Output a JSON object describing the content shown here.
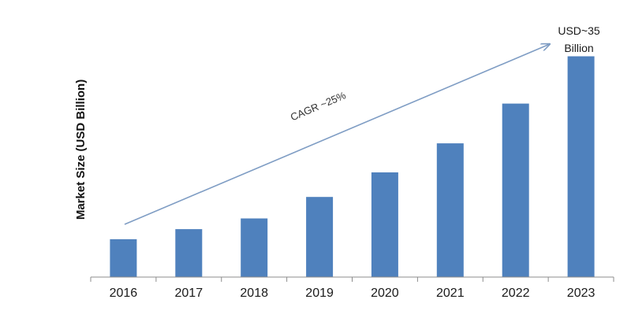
{
  "chart_data": {
    "type": "bar",
    "categories": [
      "2016",
      "2017",
      "2018",
      "2019",
      "2020",
      "2021",
      "2022",
      "2023"
    ],
    "values": [
      6.0,
      7.6,
      9.3,
      12.7,
      16.6,
      21.2,
      27.5,
      35.0
    ],
    "title": "",
    "xlabel": "",
    "ylabel": "Market Size (USD Billion)",
    "ylim": [
      0,
      37.5
    ],
    "grid": false,
    "legend": "none",
    "bar_color": "#4f81bd",
    "annotations": {
      "cagr": "CAGR ~25%",
      "end_value_line1": "USD~35",
      "end_value_line2": "Billion"
    }
  }
}
